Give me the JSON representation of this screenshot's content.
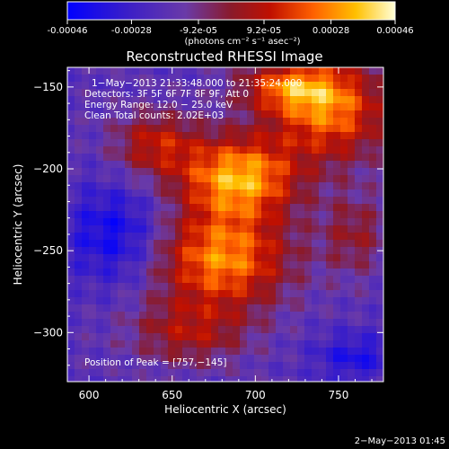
{
  "colorbar": {
    "ticks": [
      -0.00046,
      -0.00028,
      -9.2e-05,
      9.2e-05,
      0.00028,
      0.00046
    ],
    "tick_labels": [
      "-0.00046",
      "-0.00028",
      "-9.2e-05",
      "9.2e-05",
      "0.00028",
      "0.00046"
    ],
    "units_label": "(photons cm⁻² s⁻¹ asec⁻²)"
  },
  "chart_data": {
    "type": "heatmap",
    "title": "Reconstructed RHESSI Image",
    "xlabel": "Heliocentric X (arcsec)",
    "ylabel": "Heliocentric Y (arcsec)",
    "xlim": [
      587,
      777
    ],
    "ylim": [
      -330,
      -138
    ],
    "x_ticks": [
      600,
      650,
      700,
      750
    ],
    "y_ticks": [
      -300,
      -250,
      -200,
      -150
    ],
    "x_tick_labels": [
      "600",
      "650",
      "700",
      "750"
    ],
    "y_tick_labels": [
      "−300",
      "−250",
      "−200",
      "−150"
    ],
    "value_range": [
      -0.00046,
      0.00046
    ],
    "colormap": "blue-purple-red-yellow-white",
    "annotations": {
      "time_range": "1−May−2013 21:33:48.000 to 21:35:24.000",
      "detectors": "Detectors: 3F 5F 6F 7F 8F 9F, Att 0",
      "energy": "Energy Range: 12.0 − 25.0 keV",
      "method": "Clean     Total counts: 2.02E+03",
      "peak": "Position of Peak = [757,−145]"
    },
    "peak_position": [
      757,
      -145
    ]
  },
  "footer": {
    "timestamp": "2−May−2013 01:45"
  }
}
